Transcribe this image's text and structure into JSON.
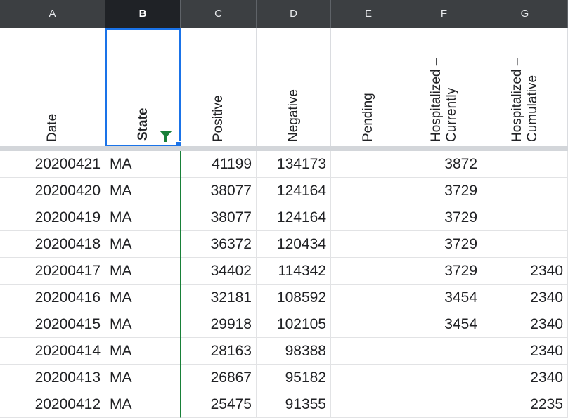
{
  "columns": [
    {
      "letter": "A",
      "header": "Date",
      "selected": false
    },
    {
      "letter": "B",
      "header": "State",
      "selected": true
    },
    {
      "letter": "C",
      "header": "Positive",
      "selected": false
    },
    {
      "letter": "D",
      "header": "Negative",
      "selected": false
    },
    {
      "letter": "E",
      "header": "Pending",
      "selected": false
    },
    {
      "letter": "F",
      "header": "Hospitalized –\nCurrently",
      "selected": false
    },
    {
      "letter": "G",
      "header": "Hospitalized –\nCumulative",
      "selected": false
    }
  ],
  "rows": [
    [
      "20200421",
      "MA",
      "41199",
      "134173",
      "",
      "3872",
      ""
    ],
    [
      "20200420",
      "MA",
      "38077",
      "124164",
      "",
      "3729",
      ""
    ],
    [
      "20200419",
      "MA",
      "38077",
      "124164",
      "",
      "3729",
      ""
    ],
    [
      "20200418",
      "MA",
      "36372",
      "120434",
      "",
      "3729",
      ""
    ],
    [
      "20200417",
      "MA",
      "34402",
      "114342",
      "",
      "3729",
      "2340"
    ],
    [
      "20200416",
      "MA",
      "32181",
      "108592",
      "",
      "3454",
      "2340"
    ],
    [
      "20200415",
      "MA",
      "29918",
      "102105",
      "",
      "3454",
      "2340"
    ],
    [
      "20200414",
      "MA",
      "28163",
      "98388",
      "",
      "",
      "2340"
    ],
    [
      "20200413",
      "MA",
      "26867",
      "95182",
      "",
      "",
      "2340"
    ],
    [
      "20200412",
      "MA",
      "25475",
      "91355",
      "",
      "",
      "2235"
    ]
  ],
  "icons": {
    "filter": "filter-icon",
    "selection_handle": "selection-handle-icon"
  },
  "colors": {
    "column_bar": "#3c3f42",
    "selection": "#1a73e8",
    "filter": "#188038"
  }
}
